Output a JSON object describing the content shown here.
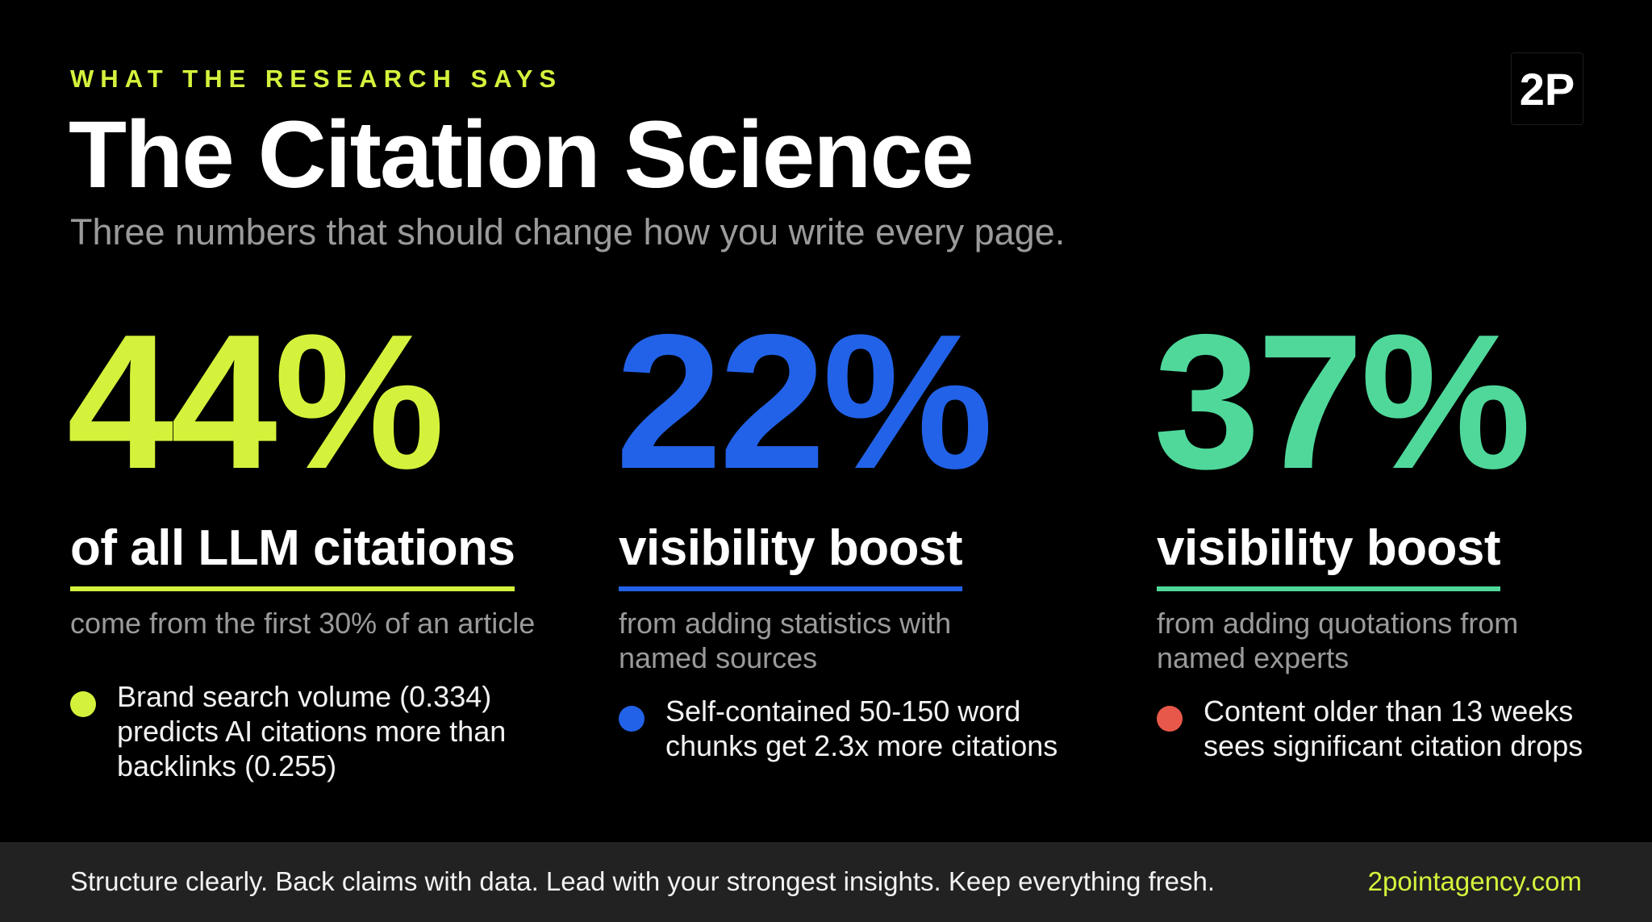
{
  "header": {
    "eyebrow": "WHAT THE RESEARCH SAYS",
    "title": "The Citation Science",
    "subtitle": "Three numbers that should change how you write every page.",
    "logo": "2P"
  },
  "colors": {
    "accent_lime": "#d4f23c",
    "accent_blue": "#2262e8",
    "accent_green": "#4fd89a",
    "accent_red": "#e8584a",
    "muted_text": "#9a9a9a",
    "footer_bg": "#222222"
  },
  "stats": [
    {
      "value": "44%",
      "label": "of all LLM citations",
      "description": "come from the first 30% of an article",
      "color": "#d4f23c"
    },
    {
      "value": "22%",
      "label": "visibility boost",
      "description": "from adding statistics with named sources",
      "color": "#2262e8"
    },
    {
      "value": "37%",
      "label": "visibility boost",
      "description": "from adding quotations from named experts",
      "color": "#4fd89a"
    }
  ],
  "bullets": [
    {
      "text": "Brand search volume (0.334) predicts AI citations more than backlinks (0.255)",
      "color": "#d4f23c"
    },
    {
      "text": "Self-contained 50-150 word chunks get 2.3x more citations",
      "color": "#2262e8"
    },
    {
      "text": "Content older than 13 weeks sees significant citation drops",
      "color": "#e8584a"
    }
  ],
  "footer": {
    "text": "Structure clearly. Back claims with data. Lead with your strongest insights. Keep everything fresh.",
    "link": "2pointagency.com",
    "link_color": "#d4f23c"
  }
}
